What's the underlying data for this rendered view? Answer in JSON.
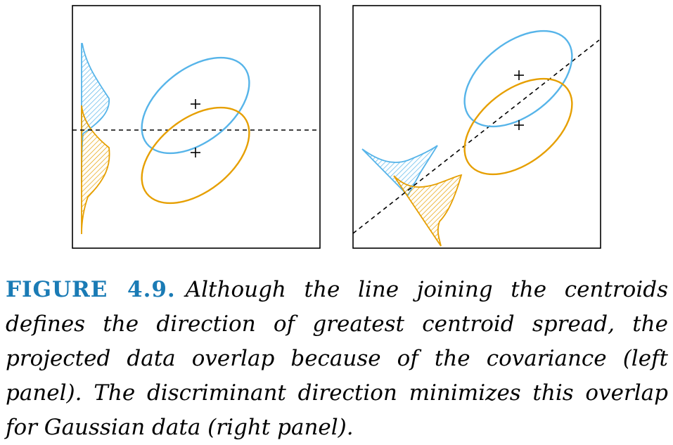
{
  "colors": {
    "class_a": "#56b4e9",
    "class_b": "#e69f00",
    "frame": "#000000",
    "caption_label": "#1a7bb5"
  },
  "panels": [
    {
      "id": "left",
      "note": "projection onto line joining centroids (horizontal)"
    },
    {
      "id": "right",
      "note": "projection onto discriminant direction (diagonal)"
    }
  ],
  "caption": {
    "label": "FIGURE 4.9.",
    "text": "Although the line joining the centroids defines the direction of greatest centroid spread, the projected data overlap because of the covariance (left panel). The discriminant direction minimizes this overlap for Gaussian data (right panel)."
  }
}
